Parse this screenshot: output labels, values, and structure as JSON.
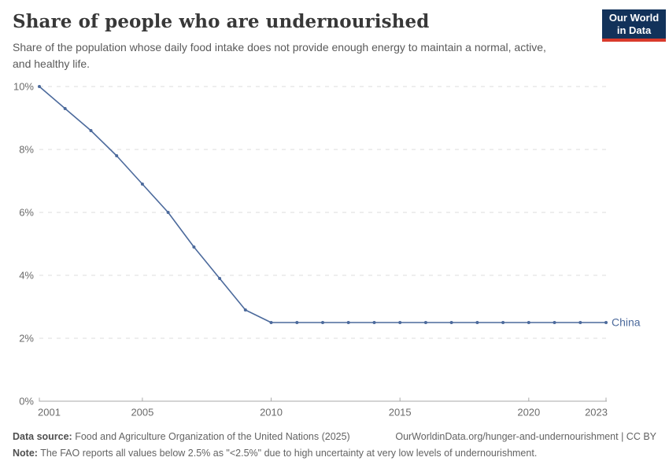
{
  "header": {
    "title": "Share of people who are undernourished",
    "subtitle": "Share of the population whose daily food intake does not provide enough energy to maintain a normal, active,\nand healthy life."
  },
  "logo": {
    "line1": "Our World",
    "line2": "in Data"
  },
  "chart_data": {
    "type": "line",
    "x": [
      2001,
      2002,
      2003,
      2004,
      2005,
      2006,
      2007,
      2008,
      2009,
      2010,
      2011,
      2012,
      2013,
      2014,
      2015,
      2016,
      2017,
      2018,
      2019,
      2020,
      2021,
      2022,
      2023
    ],
    "series": [
      {
        "name": "China",
        "color": "#4c6a9c",
        "values": [
          10.0,
          9.3,
          8.6,
          7.8,
          6.9,
          6.0,
          4.9,
          3.9,
          2.9,
          2.5,
          2.5,
          2.5,
          2.5,
          2.5,
          2.5,
          2.5,
          2.5,
          2.5,
          2.5,
          2.5,
          2.5,
          2.5,
          2.5
        ]
      }
    ],
    "xlim": [
      2001,
      2023
    ],
    "ylim": [
      0,
      10
    ],
    "x_ticks": [
      2001,
      2005,
      2010,
      2015,
      2020,
      2023
    ],
    "y_ticks": [
      0,
      2,
      4,
      6,
      8,
      10
    ],
    "y_suffix": "%",
    "grid": "horizontal-dashed",
    "legend_position": "end-of-line-label",
    "title": "Share of people who are undernourished"
  },
  "colors": {
    "line": "#4c6a9c",
    "grid": "#dcdcdc",
    "axis": "#a8a8a8",
    "tick_label": "#6b6b6b",
    "series_label": "#4c6a9c",
    "logo_bg": "#12325a",
    "logo_bar": "#d93a2b"
  },
  "footer": {
    "source_label": "Data source:",
    "source_text": " Food and Agriculture Organization of the United Nations (2025)",
    "link_text": "OurWorldinData.org/hunger-and-undernourishment | CC BY",
    "note_label": "Note:",
    "note_text": " The FAO reports all values below 2.5% as \"<2.5%\" due to high uncertainty at very low levels of undernourishment."
  }
}
